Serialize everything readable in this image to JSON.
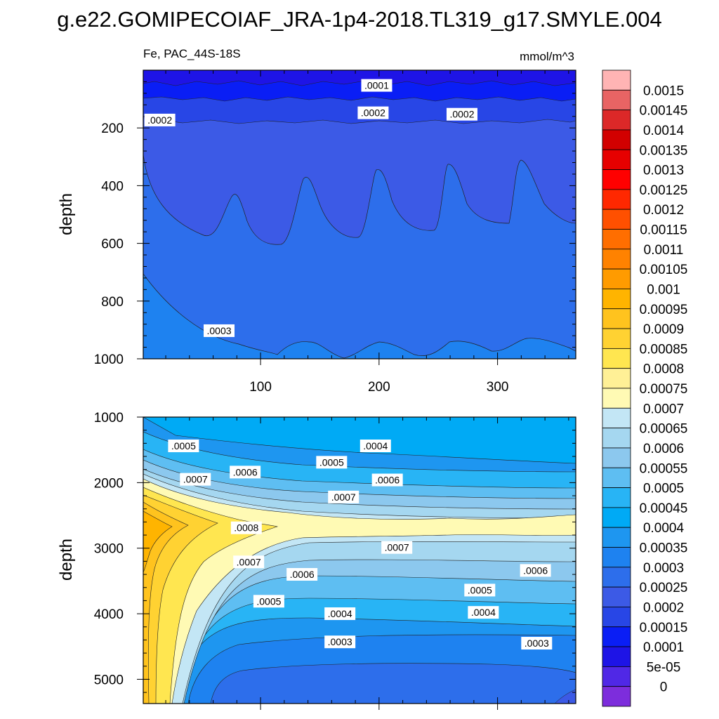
{
  "figure": {
    "title": "g.e22.GOMIPECOIAF_JRA-1p4-2018.TL319_g17.SMYLE.004",
    "variable_region": "Fe, PAC_44S-18S",
    "units": "mmol/m^3"
  },
  "chart_data": [
    {
      "type": "heatmap",
      "panel": "upper",
      "ylabel": "depth",
      "xlabel": "",
      "x_ticks": [
        "100",
        "200",
        "300"
      ],
      "x_tick_values": [
        100,
        200,
        300
      ],
      "xlim": [
        1,
        366
      ],
      "y_ticks": [
        "200",
        "400",
        "600",
        "800",
        "1000"
      ],
      "y_tick_values": [
        200,
        400,
        600,
        800,
        1000
      ],
      "ylim": [
        0,
        1000
      ],
      "y_reversed": true,
      "contour_labels": [
        {
          "text": ".0001",
          "x": 198,
          "y": 55
        },
        {
          "text": ".0002",
          "x": 15,
          "y": 175
        },
        {
          "text": ".0002",
          "x": 195,
          "y": 150
        },
        {
          "text": ".0002",
          "x": 270,
          "y": 155
        },
        {
          "text": ".0003",
          "x": 65,
          "y": 905
        }
      ]
    },
    {
      "type": "heatmap",
      "panel": "lower",
      "ylabel": "depth",
      "xlabel": "",
      "xlim": [
        1,
        366
      ],
      "y_ticks": [
        "1000",
        "2000",
        "3000",
        "4000",
        "5000"
      ],
      "y_tick_values": [
        1000,
        2000,
        3000,
        4000,
        5000
      ],
      "ylim": [
        1000,
        5370
      ],
      "y_reversed": true,
      "contour_labels": [
        {
          "text": ".0004",
          "x": 197,
          "y": 1450
        },
        {
          "text": ".0005",
          "x": 35,
          "y": 1450
        },
        {
          "text": ".0005",
          "x": 160,
          "y": 1700
        },
        {
          "text": ".0006",
          "x": 87,
          "y": 1850
        },
        {
          "text": ".0006",
          "x": 207,
          "y": 1970
        },
        {
          "text": ".0007",
          "x": 45,
          "y": 1960
        },
        {
          "text": ".0007",
          "x": 170,
          "y": 2230
        },
        {
          "text": ".0008",
          "x": 88,
          "y": 2700
        },
        {
          "text": ".0007",
          "x": 90,
          "y": 3220
        },
        {
          "text": ".0007",
          "x": 215,
          "y": 3000
        },
        {
          "text": ".0006",
          "x": 135,
          "y": 3410
        },
        {
          "text": ".0006",
          "x": 332,
          "y": 3350
        },
        {
          "text": ".0005",
          "x": 107,
          "y": 3820
        },
        {
          "text": ".0005",
          "x": 285,
          "y": 3650
        },
        {
          "text": ".0004",
          "x": 167,
          "y": 4010
        },
        {
          "text": ".0004",
          "x": 288,
          "y": 3990
        },
        {
          "text": ".0003",
          "x": 167,
          "y": 4440
        },
        {
          "text": ".0003",
          "x": 333,
          "y": 4460
        }
      ]
    }
  ],
  "colorbar": {
    "labels": [
      "0.0015",
      "0.00145",
      "0.0014",
      "0.00135",
      "0.0013",
      "0.00125",
      "0.0012",
      "0.00115",
      "0.0011",
      "0.00105",
      "0.001",
      "0.00095",
      "0.0009",
      "0.00085",
      "0.0008",
      "0.00075",
      "0.0007",
      "0.00065",
      "0.0006",
      "0.00055",
      "0.0005",
      "0.00045",
      "0.0004",
      "0.00035",
      "0.0003",
      "0.00025",
      "0.0002",
      "0.00015",
      "0.0001",
      "5e-05",
      "0"
    ],
    "colors_top_to_bottom": [
      "#ffb4b4",
      "#e86464",
      "#dc2828",
      "#d20000",
      "#e60000",
      "#ff0000",
      "#ff2800",
      "#ff5000",
      "#ff6e00",
      "#ff8200",
      "#ff9b00",
      "#ffb400",
      "#ffc31e",
      "#ffd232",
      "#ffe650",
      "#fff096",
      "#fffab4",
      "#c3e6f5",
      "#a5d7f0",
      "#8cc8ee",
      "#5ebef2",
      "#28b4f5",
      "#00aaf5",
      "#1e96f0",
      "#1e82f0",
      "#2d6eeb",
      "#3c5ae6",
      "#2846e6",
      "#0a1ef5",
      "#1e14e6",
      "#5028e6",
      "#7d2ddc"
    ]
  }
}
